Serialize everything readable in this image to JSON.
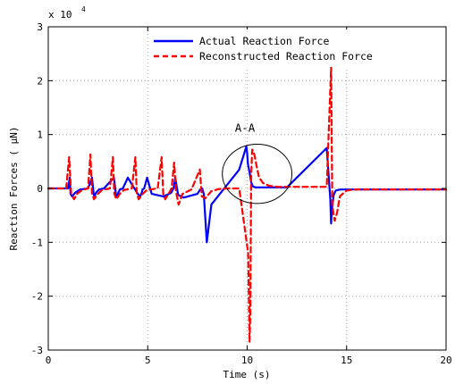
{
  "chart_data": {
    "type": "line",
    "title": "",
    "xlabel": "Time (s)",
    "ylabel": "Reaction Forces ( μN)",
    "xlim": [
      0,
      20
    ],
    "ylim": [
      -3,
      3
    ],
    "y_multiplier_label": "x 10",
    "y_multiplier_exponent": "4",
    "x_ticks": [
      "0",
      "5",
      "10",
      "15",
      "20"
    ],
    "y_ticks": [
      "-3",
      "-2",
      "-1",
      "0",
      "1",
      "2",
      "3"
    ],
    "grid": true,
    "legend_position": "top-right",
    "annotation": {
      "label": "A-A",
      "center": [
        10.5,
        0.27
      ],
      "radius_x": 1.75,
      "radius_y": 0.55
    },
    "series": [
      {
        "name": "Actual Reaction Force",
        "color": "#0000ff",
        "line_style": "solid",
        "x": [
          0,
          1.0,
          1.08,
          1.12,
          1.2,
          1.35,
          1.6,
          2.0,
          2.2,
          2.28,
          2.32,
          2.4,
          2.55,
          2.8,
          3.3,
          3.4,
          3.48,
          3.52,
          3.6,
          3.75,
          4.0,
          4.5,
          4.62,
          4.7,
          4.74,
          4.82,
          4.97,
          5.2,
          5.8,
          6.18,
          6.26,
          6.3,
          6.38,
          6.53,
          6.8,
          7.5,
          7.62,
          7.7,
          7.74,
          7.82,
          7.97,
          8.2,
          9.6,
          9.96,
          10.0,
          10.04,
          10.12,
          10.2,
          10.28,
          10.4,
          10.6,
          10.9,
          11.3,
          12.0,
          14.0,
          14.18,
          14.22,
          14.26,
          14.35,
          14.45,
          14.55,
          14.7,
          14.9,
          15.3,
          16.0,
          20.0
        ],
        "y": [
          0.0,
          0.0,
          0.2,
          -0.1,
          -0.15,
          -0.08,
          -0.02,
          0.0,
          0.2,
          -0.1,
          -0.15,
          -0.08,
          -0.02,
          0.0,
          0.2,
          -0.1,
          -0.15,
          -0.08,
          -0.02,
          0.0,
          0.2,
          -0.1,
          -0.15,
          -0.08,
          -0.02,
          0.0,
          0.2,
          -0.1,
          -0.15,
          -0.08,
          -0.02,
          0.0,
          0.2,
          -0.12,
          -0.17,
          -0.1,
          -0.03,
          0.0,
          0.0,
          -0.1,
          -1.0,
          -0.3,
          0.35,
          0.78,
          0.65,
          0.45,
          0.3,
          0.12,
          0.04,
          0.02,
          0.02,
          0.02,
          0.02,
          0.02,
          0.75,
          -0.2,
          -0.65,
          -0.4,
          -0.12,
          -0.04,
          -0.03,
          -0.02,
          -0.02,
          -0.02,
          -0.02,
          -0.02
        ]
      },
      {
        "name": "Reconstructed Reaction Force",
        "color": "#ff0000",
        "line_style": "dashed",
        "x": [
          0,
          0.9,
          1.05,
          1.15,
          1.3,
          1.45,
          1.7,
          2.0,
          2.12,
          2.2,
          2.3,
          2.5,
          2.7,
          3.1,
          3.25,
          3.32,
          3.42,
          3.6,
          3.8,
          4.2,
          4.38,
          4.45,
          4.55,
          4.75,
          4.95,
          5.5,
          5.7,
          5.78,
          5.88,
          6.05,
          6.2,
          6.33,
          6.42,
          6.55,
          6.75,
          7.2,
          7.62,
          7.72,
          7.9,
          8.2,
          8.6,
          9.0,
          9.6,
          10.05,
          10.12,
          10.16,
          10.2,
          10.25,
          10.3,
          10.38,
          10.48,
          10.6,
          10.8,
          11.1,
          11.5,
          12.2,
          13.8,
          14.0,
          14.22,
          14.28,
          14.32,
          14.4,
          14.52,
          14.66,
          14.8,
          15.0,
          15.4,
          16.2,
          20.0
        ],
        "y": [
          0.0,
          0.0,
          0.58,
          -0.1,
          -0.2,
          -0.1,
          -0.03,
          0.0,
          0.63,
          -0.1,
          -0.2,
          -0.1,
          -0.03,
          0.0,
          0.58,
          -0.1,
          -0.2,
          -0.1,
          -0.03,
          0.0,
          0.58,
          -0.1,
          -0.2,
          -0.1,
          -0.03,
          0.0,
          0.58,
          -0.1,
          -0.2,
          -0.1,
          0.0,
          0.48,
          -0.05,
          -0.3,
          -0.1,
          -0.02,
          0.35,
          -0.15,
          -0.18,
          -0.05,
          -0.01,
          0.0,
          0.0,
          -1.2,
          -2.85,
          -2.3,
          0.2,
          0.72,
          0.7,
          0.6,
          0.4,
          0.2,
          0.1,
          0.05,
          0.03,
          0.03,
          0.03,
          0.03,
          2.25,
          -0.3,
          -0.42,
          -0.6,
          -0.45,
          -0.15,
          -0.1,
          -0.04,
          -0.02,
          -0.02,
          -0.02
        ]
      }
    ]
  }
}
